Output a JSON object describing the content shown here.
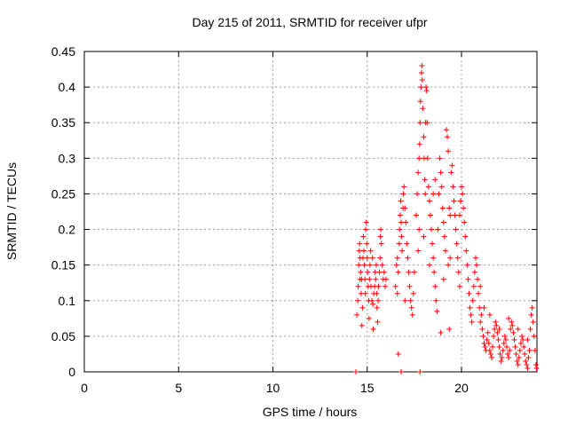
{
  "chart_data": {
    "type": "scatter",
    "title": "Day 215 of 2011, SRMTID for receiver ufpr",
    "xlabel": "GPS time / hours",
    "ylabel": "SRMTID / TECUs",
    "xlim": [
      0,
      24
    ],
    "ylim": [
      0,
      0.45
    ],
    "x_ticks": [
      "0",
      "5",
      "10",
      "15",
      "20"
    ],
    "y_ticks": [
      "0",
      "0.05",
      "0.1",
      "0.15",
      "0.2",
      "0.25",
      "0.3",
      "0.35",
      "0.4",
      "0.45"
    ],
    "grid": true,
    "legend": "none",
    "marker": "plus",
    "color": "#ff0000",
    "series": [
      {
        "points": [
          [
            14.45,
            0.08
          ],
          [
            14.5,
            0.1
          ],
          [
            14.52,
            0.12
          ],
          [
            14.55,
            0.15
          ],
          [
            14.58,
            0.17
          ],
          [
            14.6,
            0.18
          ],
          [
            14.62,
            0.16
          ],
          [
            14.65,
            0.14
          ],
          [
            14.68,
            0.11
          ],
          [
            14.7,
            0.13
          ],
          [
            14.72,
            0.065
          ],
          [
            14.75,
            0.09
          ],
          [
            14.78,
            0.16
          ],
          [
            14.8,
            0.19
          ],
          [
            14.82,
            0.17
          ],
          [
            14.85,
            0.15
          ],
          [
            14.88,
            0.13
          ],
          [
            14.9,
            0.11
          ],
          [
            14.92,
            0.2
          ],
          [
            14.95,
            0.21
          ],
          [
            14.98,
            0.18
          ],
          [
            15.0,
            0.16
          ],
          [
            15.02,
            0.14
          ],
          [
            15.05,
            0.12
          ],
          [
            15.08,
            0.1
          ],
          [
            15.1,
            0.075
          ],
          [
            15.12,
            0.13
          ],
          [
            15.15,
            0.15
          ],
          [
            15.18,
            0.17
          ],
          [
            15.2,
            0.12
          ],
          [
            15.25,
            0.1
          ],
          [
            15.3,
            0.095
          ],
          [
            15.35,
            0.11
          ],
          [
            15.4,
            0.12
          ],
          [
            15.42,
            0.14
          ],
          [
            15.45,
            0.13
          ],
          [
            15.5,
            0.11
          ],
          [
            15.52,
            0.09
          ],
          [
            15.55,
            0.07
          ],
          [
            15.58,
            0.1
          ],
          [
            15.6,
            0.12
          ],
          [
            15.65,
            0.14
          ],
          [
            15.68,
            0.16
          ],
          [
            15.7,
            0.19
          ],
          [
            15.72,
            0.2
          ],
          [
            15.75,
            0.18
          ],
          [
            15.8,
            0.15
          ],
          [
            15.85,
            0.13
          ],
          [
            15.9,
            0.14
          ],
          [
            15.95,
            0.12
          ],
          [
            16.0,
            0.13
          ],
          [
            15.32,
            0.06
          ],
          [
            15.28,
            0.16
          ],
          [
            14.62,
            0.13
          ],
          [
            15.48,
            0.15
          ],
          [
            16.5,
            0.12
          ],
          [
            16.55,
            0.15
          ],
          [
            16.6,
            0.16
          ],
          [
            16.65,
            0.14
          ],
          [
            16.7,
            0.18
          ],
          [
            16.72,
            0.2
          ],
          [
            16.75,
            0.22
          ],
          [
            16.78,
            0.24
          ],
          [
            16.8,
            0.21
          ],
          [
            16.82,
            0.19
          ],
          [
            16.85,
            0.17
          ],
          [
            16.9,
            0.23
          ],
          [
            16.92,
            0.25
          ],
          [
            16.95,
            0.26
          ],
          [
            17.0,
            0.23
          ],
          [
            17.05,
            0.21
          ],
          [
            17.1,
            0.18
          ],
          [
            17.15,
            0.16
          ],
          [
            17.2,
            0.14
          ],
          [
            17.25,
            0.12
          ],
          [
            17.3,
            0.1
          ],
          [
            17.35,
            0.09
          ],
          [
            17.4,
            0.08
          ],
          [
            17.45,
            0.11
          ],
          [
            17.5,
            0.14
          ],
          [
            16.65,
            0.025
          ],
          [
            17.0,
            0.1
          ],
          [
            16.6,
            0.11
          ],
          [
            17.6,
            0.22
          ],
          [
            17.65,
            0.25
          ],
          [
            17.7,
            0.28
          ],
          [
            17.75,
            0.3
          ],
          [
            17.78,
            0.32
          ],
          [
            17.8,
            0.35
          ],
          [
            17.82,
            0.38
          ],
          [
            17.85,
            0.4
          ],
          [
            17.88,
            0.42
          ],
          [
            17.9,
            0.43
          ],
          [
            17.92,
            0.41
          ],
          [
            17.95,
            0.37
          ],
          [
            18.0,
            0.33
          ],
          [
            18.02,
            0.3
          ],
          [
            18.05,
            0.27
          ],
          [
            18.08,
            0.25
          ],
          [
            18.1,
            0.35
          ],
          [
            18.12,
            0.4
          ],
          [
            18.15,
            0.395
          ],
          [
            18.18,
            0.35
          ],
          [
            18.2,
            0.3
          ],
          [
            18.25,
            0.26
          ],
          [
            18.3,
            0.24
          ],
          [
            18.35,
            0.22
          ],
          [
            18.4,
            0.2
          ],
          [
            18.45,
            0.18
          ],
          [
            18.5,
            0.16
          ],
          [
            18.55,
            0.14
          ],
          [
            18.6,
            0.12
          ],
          [
            18.65,
            0.1
          ],
          [
            18.7,
            0.085
          ],
          [
            18.75,
            0.2
          ],
          [
            18.8,
            0.25
          ],
          [
            18.85,
            0.3
          ],
          [
            18.9,
            0.28
          ],
          [
            18.95,
            0.26
          ],
          [
            19.0,
            0.23
          ],
          [
            19.05,
            0.21
          ],
          [
            19.1,
            0.19
          ],
          [
            19.15,
            0.17
          ],
          [
            19.2,
            0.34
          ],
          [
            19.25,
            0.33
          ],
          [
            19.3,
            0.31
          ],
          [
            19.35,
            0.23
          ],
          [
            19.4,
            0.22
          ],
          [
            19.45,
            0.28
          ],
          [
            19.5,
            0.29
          ],
          [
            19.55,
            0.26
          ],
          [
            19.6,
            0.24
          ],
          [
            19.65,
            0.22
          ],
          [
            19.7,
            0.2
          ],
          [
            19.75,
            0.18
          ],
          [
            19.8,
            0.16
          ],
          [
            19.85,
            0.14
          ],
          [
            19.9,
            0.12
          ],
          [
            18.9,
            0.055
          ],
          [
            19.05,
            0.13
          ],
          [
            19.35,
            0.06
          ],
          [
            18.5,
            0.25
          ],
          [
            18.6,
            0.27
          ],
          [
            19.3,
            0.15
          ],
          [
            19.4,
            0.16
          ],
          [
            18.0,
            0.19
          ],
          [
            17.75,
            0.2
          ],
          [
            17.7,
            0.17
          ],
          [
            18.3,
            0.15
          ],
          [
            19.9,
            0.22
          ],
          [
            19.95,
            0.24
          ],
          [
            20.0,
            0.26
          ],
          [
            20.05,
            0.25
          ],
          [
            20.1,
            0.23
          ],
          [
            20.15,
            0.21
          ],
          [
            20.2,
            0.19
          ],
          [
            20.25,
            0.17
          ],
          [
            20.3,
            0.15
          ],
          [
            20.35,
            0.13
          ],
          [
            20.4,
            0.11
          ],
          [
            20.45,
            0.09
          ],
          [
            20.5,
            0.08
          ],
          [
            20.55,
            0.07
          ],
          [
            20.6,
            0.1
          ],
          [
            20.65,
            0.12
          ],
          [
            20.7,
            0.14
          ],
          [
            20.75,
            0.16
          ],
          [
            20.8,
            0.15
          ],
          [
            20.85,
            0.13
          ],
          [
            20.9,
            0.11
          ],
          [
            20.95,
            0.09
          ],
          [
            21.0,
            0.07
          ],
          [
            21.05,
            0.08
          ],
          [
            21.1,
            0.06
          ],
          [
            21.15,
            0.05
          ],
          [
            21.2,
            0.04
          ],
          [
            21.25,
            0.035
          ],
          [
            21.3,
            0.03
          ],
          [
            21.35,
            0.045
          ],
          [
            21.4,
            0.055
          ],
          [
            21.45,
            0.04
          ],
          [
            21.5,
            0.03
          ],
          [
            21.55,
            0.025
          ],
          [
            21.6,
            0.02
          ],
          [
            21.65,
            0.035
          ],
          [
            21.7,
            0.05
          ],
          [
            21.75,
            0.06
          ],
          [
            21.8,
            0.07
          ],
          [
            21.85,
            0.065
          ],
          [
            21.9,
            0.055
          ],
          [
            21.95,
            0.045
          ],
          [
            22.0,
            0.035
          ],
          [
            22.05,
            0.025
          ],
          [
            22.1,
            0.015
          ],
          [
            22.15,
            0.02
          ],
          [
            22.2,
            0.03
          ],
          [
            22.25,
            0.04
          ],
          [
            22.3,
            0.05
          ],
          [
            22.35,
            0.045
          ],
          [
            22.4,
            0.035
          ],
          [
            22.45,
            0.025
          ],
          [
            22.5,
            0.02
          ],
          [
            22.55,
            0.03
          ],
          [
            22.6,
            0.06
          ],
          [
            22.65,
            0.07
          ],
          [
            22.7,
            0.065
          ],
          [
            22.75,
            0.055
          ],
          [
            22.8,
            0.045
          ],
          [
            22.85,
            0.035
          ],
          [
            22.9,
            0.025
          ],
          [
            22.95,
            0.015
          ],
          [
            23.0,
            0.01
          ],
          [
            23.05,
            0.02
          ],
          [
            23.1,
            0.03
          ],
          [
            23.15,
            0.04
          ],
          [
            23.2,
            0.05
          ],
          [
            23.25,
            0.045
          ],
          [
            23.3,
            0.035
          ],
          [
            23.35,
            0.025
          ],
          [
            23.4,
            0.015
          ],
          [
            23.45,
            0.01
          ],
          [
            23.5,
            0.005
          ],
          [
            23.55,
            0.02
          ],
          [
            23.6,
            0.03
          ],
          [
            23.65,
            0.06
          ],
          [
            23.7,
            0.08
          ],
          [
            23.75,
            0.09
          ],
          [
            23.8,
            0.07
          ],
          [
            23.85,
            0.05
          ],
          [
            23.9,
            0.03
          ],
          [
            23.95,
            0.01
          ],
          [
            23.98,
            0.005
          ],
          [
            21.0,
            0.12
          ],
          [
            21.2,
            0.09
          ],
          [
            21.5,
            0.08
          ],
          [
            22.0,
            0.06
          ],
          [
            22.5,
            0.075
          ],
          [
            23.0,
            0.06
          ],
          [
            23.5,
            0.045
          ]
        ]
      },
      {
        "name": "",
        "points": [
          [
            14.4,
            0.0
          ],
          [
            16.8,
            0.0
          ],
          [
            17.8,
            0.0
          ]
        ]
      }
    ]
  }
}
